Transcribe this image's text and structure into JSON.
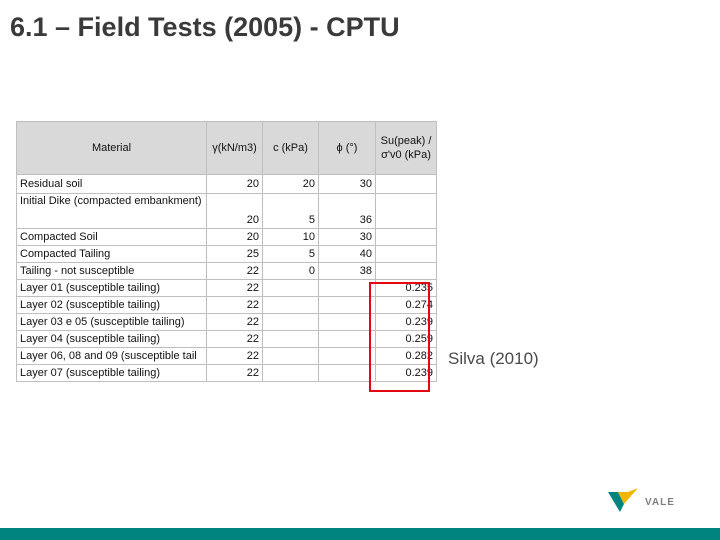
{
  "slide": {
    "title": "6.1 – Field Tests (2005) - CPTU",
    "citation": "Silva (2010)",
    "logo_text": "VALE",
    "accent_color": "#00847f",
    "highlight_color": "#e30613"
  },
  "table": {
    "headers": {
      "material": "Material",
      "gamma": "γ(kN/m3)",
      "c": "c (kPa)",
      "phi": "ϕ (°)",
      "su": "Su(peak) /σ'v0 (kPa)"
    },
    "rows": [
      {
        "material": "Residual soil",
        "gamma": "20",
        "c": "20",
        "phi": "30",
        "su": ""
      },
      {
        "material": "Initial Dike (compacted embankment)",
        "gamma": "20",
        "c": "5",
        "phi": "36",
        "su": ""
      },
      {
        "material": "Compacted Soil",
        "gamma": "20",
        "c": "10",
        "phi": "30",
        "su": ""
      },
      {
        "material": "Compacted Tailing",
        "gamma": "25",
        "c": "5",
        "phi": "40",
        "su": ""
      },
      {
        "material": "Tailing - not susceptible",
        "gamma": "22",
        "c": "0",
        "phi": "38",
        "su": ""
      },
      {
        "material": "Layer 01 (susceptible tailing)",
        "gamma": "22",
        "c": "",
        "phi": "",
        "su": "0.235"
      },
      {
        "material": "Layer 02 (susceptible tailing)",
        "gamma": "22",
        "c": "",
        "phi": "",
        "su": "0.274"
      },
      {
        "material": "Layer 03 e 05 (susceptible tailing)",
        "gamma": "22",
        "c": "",
        "phi": "",
        "su": "0.239"
      },
      {
        "material": "Layer 04 (susceptible tailing)",
        "gamma": "22",
        "c": "",
        "phi": "",
        "su": "0.259"
      },
      {
        "material": "Layer 06, 08 and 09 (susceptible tail",
        "gamma": "22",
        "c": "",
        "phi": "",
        "su": "0.282"
      },
      {
        "material": "Layer 07 (susceptible tailing)",
        "gamma": "22",
        "c": "",
        "phi": "",
        "su": "0.239"
      }
    ]
  }
}
